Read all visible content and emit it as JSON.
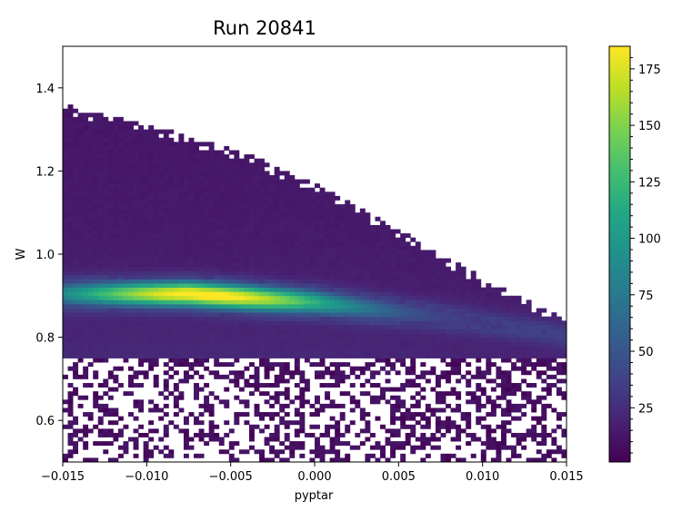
{
  "chart_data": {
    "type": "heatmap",
    "title": "Run 20841",
    "xlabel": "pyptar",
    "ylabel": "W",
    "xlim": [
      -0.015,
      0.015
    ],
    "ylim": [
      0.5,
      1.5
    ],
    "x_ticks": [
      {
        "value": -0.015,
        "label": "−0.015"
      },
      {
        "value": -0.01,
        "label": "−0.010"
      },
      {
        "value": -0.005,
        "label": "−0.005"
      },
      {
        "value": 0.0,
        "label": "0.000"
      },
      {
        "value": 0.005,
        "label": "0.005"
      },
      {
        "value": 0.01,
        "label": "0.010"
      },
      {
        "value": 0.015,
        "label": "0.015"
      }
    ],
    "y_ticks": [
      {
        "value": 0.6,
        "label": "0.6"
      },
      {
        "value": 0.8,
        "label": "0.8"
      },
      {
        "value": 1.0,
        "label": "1.0"
      },
      {
        "value": 1.2,
        "label": "1.2"
      },
      {
        "value": 1.4,
        "label": "1.4"
      }
    ],
    "colorbar": {
      "colormap": "viridis",
      "min": 1,
      "max": 185,
      "ticks": [
        {
          "value": 25,
          "label": "25"
        },
        {
          "value": 50,
          "label": "50"
        },
        {
          "value": 75,
          "label": "75"
        },
        {
          "value": 100,
          "label": "100"
        },
        {
          "value": 125,
          "label": "125"
        },
        {
          "value": 150,
          "label": "150"
        },
        {
          "value": 175,
          "label": "175"
        }
      ]
    },
    "grid": false,
    "legend": "none",
    "bins": {
      "x": 100,
      "y": 100
    },
    "ridge": {
      "description_points": [
        {
          "x": -0.015,
          "w": 0.905
        },
        {
          "x": -0.0075,
          "w": 0.905
        },
        {
          "x": 0.0,
          "w": 0.885
        },
        {
          "x": 0.0075,
          "w": 0.85
        },
        {
          "x": 0.015,
          "w": 0.805
        }
      ],
      "peak": {
        "x": -0.0065,
        "w": 0.905,
        "count": 185
      }
    },
    "upper_edge": [
      {
        "x": -0.015,
        "w": 1.36
      },
      {
        "x": -0.012,
        "w": 1.33
      },
      {
        "x": -0.008,
        "w": 1.29
      },
      {
        "x": -0.004,
        "w": 1.24
      },
      {
        "x": 0.0,
        "w": 1.17
      },
      {
        "x": 0.004,
        "w": 1.08
      },
      {
        "x": 0.008,
        "w": 0.99
      },
      {
        "x": 0.012,
        "w": 0.9
      },
      {
        "x": 0.015,
        "w": 0.84
      }
    ],
    "lower_dense_edge_w": 0.75
  }
}
